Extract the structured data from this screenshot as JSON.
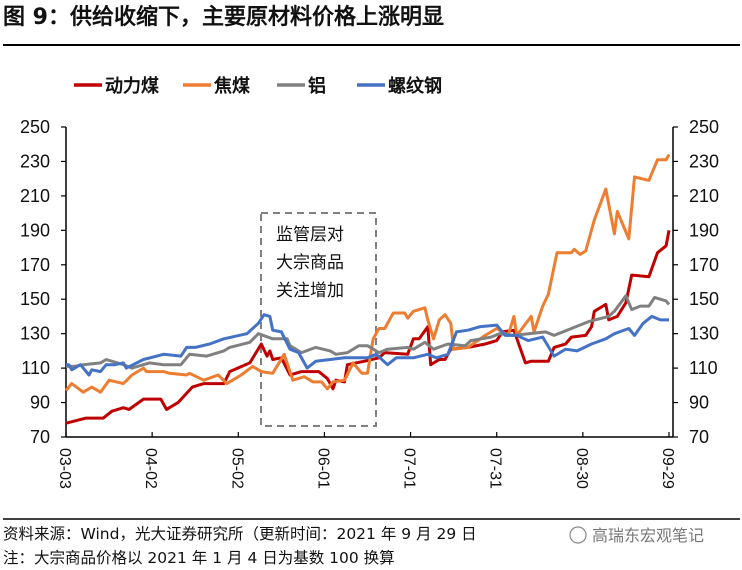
{
  "title": "图 9：供给收缩下，主要原材料价格上涨明显",
  "footer": {
    "source": "资料来源：Wind，光大证券研究所（更新时间：2021 年 9 月 29 日",
    "note": "注：大宗商品价格以 2021 年 1 月 4 日为基数 100 换算",
    "watermark": "高瑞东宏观笔记"
  },
  "chart_data": {
    "type": "line",
    "title": "",
    "xlabel": "",
    "ylabel": "",
    "ylim": [
      70,
      250
    ],
    "y_ticks": [
      "250",
      "230",
      "210",
      "190",
      "170",
      "150",
      "130",
      "110",
      "90",
      "70"
    ],
    "y2_ticks": [
      "250",
      "230",
      "210",
      "190",
      "170",
      "150",
      "130",
      "110",
      "90",
      "70"
    ],
    "x_ticks": [
      "03-03",
      "04-02",
      "05-02",
      "06-01",
      "07-01",
      "07-31",
      "08-30",
      "09-29"
    ],
    "x_range": [
      "03-03",
      "09-29"
    ],
    "grid": false,
    "legend_position": "top",
    "annotation": {
      "lines": [
        "监管层对",
        "大宗商品",
        "关注增加"
      ],
      "range": [
        "05-09",
        "06-17"
      ],
      "style": "dashed-box"
    },
    "series": [
      {
        "name": "动力煤",
        "color": "#C00000",
        "points": [
          [
            "03-03",
            78
          ],
          [
            "03-10",
            81
          ],
          [
            "03-16",
            81
          ],
          [
            "03-19",
            85
          ],
          [
            "03-23",
            87
          ],
          [
            "03-25",
            86
          ],
          [
            "03-30",
            92
          ],
          [
            "04-05",
            92
          ],
          [
            "04-07",
            86
          ],
          [
            "04-11",
            90
          ],
          [
            "04-16",
            99
          ],
          [
            "04-20",
            101
          ],
          [
            "04-27",
            101
          ],
          [
            "04-29",
            108
          ],
          [
            "05-06",
            113
          ],
          [
            "05-10",
            124
          ],
          [
            "05-12",
            117
          ],
          [
            "05-13",
            120
          ],
          [
            "05-14",
            115
          ],
          [
            "05-17",
            116
          ],
          [
            "05-20",
            106
          ],
          [
            "05-24",
            108
          ],
          [
            "05-30",
            108
          ],
          [
            "06-02",
            104
          ],
          [
            "06-04",
            98
          ],
          [
            "06-05",
            103
          ],
          [
            "06-08",
            102
          ],
          [
            "06-09",
            112
          ],
          [
            "06-15",
            114
          ],
          [
            "06-20",
            116
          ],
          [
            "06-22",
            119
          ],
          [
            "06-30",
            118
          ],
          [
            "07-02",
            127
          ],
          [
            "07-04",
            127
          ],
          [
            "07-07",
            134
          ],
          [
            "07-08",
            112
          ],
          [
            "07-11",
            115
          ],
          [
            "07-13",
            115
          ],
          [
            "07-15",
            121
          ],
          [
            "07-21",
            122
          ],
          [
            "07-27",
            124
          ],
          [
            "07-31",
            126
          ],
          [
            "08-02",
            131
          ],
          [
            "08-06",
            132
          ],
          [
            "08-10",
            113
          ],
          [
            "08-12",
            114
          ],
          [
            "08-18",
            114
          ],
          [
            "08-20",
            122
          ],
          [
            "08-24",
            124
          ],
          [
            "08-26",
            128
          ],
          [
            "08-31",
            129
          ],
          [
            "09-02",
            134
          ],
          [
            "09-03",
            143
          ],
          [
            "09-07",
            147
          ],
          [
            "09-08",
            138
          ],
          [
            "09-11",
            140
          ],
          [
            "09-14",
            148
          ],
          [
            "09-16",
            164
          ],
          [
            "09-22",
            163
          ],
          [
            "09-25",
            177
          ],
          [
            "09-28",
            181
          ],
          [
            "09-29",
            190
          ]
        ]
      },
      {
        "name": "焦煤",
        "color": "#ED7D31",
        "points": [
          [
            "03-03",
            97
          ],
          [
            "03-05",
            101
          ],
          [
            "03-09",
            96
          ],
          [
            "03-12",
            99
          ],
          [
            "03-15",
            96
          ],
          [
            "03-18",
            103
          ],
          [
            "03-23",
            101
          ],
          [
            "03-26",
            106
          ],
          [
            "03-30",
            110
          ],
          [
            "03-31",
            108
          ],
          [
            "04-06",
            108
          ],
          [
            "04-08",
            107
          ],
          [
            "04-14",
            106
          ],
          [
            "04-15",
            107
          ],
          [
            "04-20",
            103
          ],
          [
            "04-25",
            106
          ],
          [
            "04-28",
            101
          ],
          [
            "05-03",
            106
          ],
          [
            "05-07",
            111
          ],
          [
            "05-10",
            108
          ],
          [
            "05-14",
            107
          ],
          [
            "05-18",
            118
          ],
          [
            "05-21",
            103
          ],
          [
            "05-25",
            105
          ],
          [
            "05-28",
            102
          ],
          [
            "05-31",
            102
          ],
          [
            "06-02",
            98
          ],
          [
            "06-04",
            102
          ],
          [
            "06-08",
            103
          ],
          [
            "06-11",
            113
          ],
          [
            "06-14",
            107
          ],
          [
            "06-16",
            107
          ],
          [
            "06-18",
            127
          ],
          [
            "06-20",
            133
          ],
          [
            "06-22",
            133
          ],
          [
            "06-25",
            142
          ],
          [
            "06-29",
            142
          ],
          [
            "06-30",
            139
          ],
          [
            "07-02",
            143
          ],
          [
            "07-06",
            145
          ],
          [
            "07-07",
            138
          ],
          [
            "07-09",
            127
          ],
          [
            "07-11",
            138
          ],
          [
            "07-13",
            141
          ],
          [
            "07-15",
            136
          ],
          [
            "07-16",
            121
          ],
          [
            "07-21",
            122
          ],
          [
            "07-27",
            129
          ],
          [
            "07-31",
            133
          ],
          [
            "08-04",
            129
          ],
          [
            "08-06",
            140
          ],
          [
            "08-07",
            129
          ],
          [
            "08-12",
            140
          ],
          [
            "08-13",
            131
          ],
          [
            "08-16",
            146
          ],
          [
            "08-18",
            153
          ],
          [
            "08-21",
            177
          ],
          [
            "08-26",
            177
          ],
          [
            "08-27",
            179
          ],
          [
            "08-29",
            176
          ],
          [
            "08-31",
            178
          ],
          [
            "09-03",
            196
          ],
          [
            "09-07",
            214
          ],
          [
            "09-10",
            188
          ],
          [
            "09-11",
            201
          ],
          [
            "09-15",
            185
          ],
          [
            "09-17",
            221
          ],
          [
            "09-22",
            219
          ],
          [
            "09-25",
            231
          ],
          [
            "09-28",
            231
          ],
          [
            "09-29",
            234
          ]
        ]
      },
      {
        "name": "铝",
        "color": "#808080",
        "points": [
          [
            "03-03",
            111
          ],
          [
            "03-06",
            111
          ],
          [
            "03-09",
            112
          ],
          [
            "03-15",
            113
          ],
          [
            "03-17",
            115
          ],
          [
            "03-23",
            112
          ],
          [
            "03-26",
            110
          ],
          [
            "04-01",
            113
          ],
          [
            "04-06",
            112
          ],
          [
            "04-12",
            112
          ],
          [
            "04-15",
            118
          ],
          [
            "04-21",
            117
          ],
          [
            "04-27",
            120
          ],
          [
            "04-29",
            122
          ],
          [
            "05-06",
            125
          ],
          [
            "05-09",
            130
          ],
          [
            "05-14",
            127
          ],
          [
            "05-19",
            127
          ],
          [
            "05-20",
            123
          ],
          [
            "05-24",
            119
          ],
          [
            "05-29",
            122
          ],
          [
            "06-03",
            120
          ],
          [
            "06-05",
            118
          ],
          [
            "06-09",
            119
          ],
          [
            "06-13",
            123
          ],
          [
            "06-16",
            123
          ],
          [
            "06-20",
            119
          ],
          [
            "06-23",
            121
          ],
          [
            "06-30",
            122
          ],
          [
            "07-02",
            121
          ],
          [
            "07-06",
            125
          ],
          [
            "07-09",
            121
          ],
          [
            "07-14",
            124
          ],
          [
            "07-20",
            123
          ],
          [
            "07-22",
            126
          ],
          [
            "07-29",
            128
          ],
          [
            "08-01",
            130
          ],
          [
            "08-06",
            129
          ],
          [
            "08-17",
            131
          ],
          [
            "08-20",
            129
          ],
          [
            "08-26",
            133
          ],
          [
            "09-01",
            137
          ],
          [
            "09-08",
            140
          ],
          [
            "09-10",
            143
          ],
          [
            "09-14",
            152
          ],
          [
            "09-16",
            144
          ],
          [
            "09-19",
            146
          ],
          [
            "09-22",
            146
          ],
          [
            "09-24",
            151
          ],
          [
            "09-28",
            149
          ],
          [
            "09-29",
            147
          ]
        ]
      },
      {
        "name": "螺纹钢",
        "color": "#4472C4",
        "points": [
          [
            "03-03",
            112
          ],
          [
            "03-04",
            112
          ],
          [
            "03-05",
            109
          ],
          [
            "03-08",
            112
          ],
          [
            "03-11",
            106
          ],
          [
            "03-12",
            109
          ],
          [
            "03-15",
            108
          ],
          [
            "03-17",
            112
          ],
          [
            "03-20",
            112
          ],
          [
            "03-23",
            113
          ],
          [
            "03-24",
            110
          ],
          [
            "03-30",
            115
          ],
          [
            "04-06",
            118
          ],
          [
            "04-12",
            117
          ],
          [
            "04-14",
            122
          ],
          [
            "04-17",
            122
          ],
          [
            "04-22",
            124
          ],
          [
            "04-27",
            127
          ],
          [
            "05-05",
            130
          ],
          [
            "05-09",
            136
          ],
          [
            "05-11",
            141
          ],
          [
            "05-13",
            140
          ],
          [
            "05-14",
            132
          ],
          [
            "05-17",
            131
          ],
          [
            "05-20",
            121
          ],
          [
            "05-23",
            119
          ],
          [
            "05-26",
            110
          ],
          [
            "05-29",
            114
          ],
          [
            "06-03",
            115
          ],
          [
            "06-08",
            116
          ],
          [
            "06-16",
            116
          ],
          [
            "06-19",
            118
          ],
          [
            "06-23",
            112
          ],
          [
            "06-26",
            116
          ],
          [
            "07-02",
            116
          ],
          [
            "07-07",
            118
          ],
          [
            "07-10",
            116
          ],
          [
            "07-14",
            118
          ],
          [
            "07-17",
            131
          ],
          [
            "07-21",
            132
          ],
          [
            "07-25",
            134
          ],
          [
            "07-31",
            135
          ],
          [
            "08-03",
            129
          ],
          [
            "08-07",
            129
          ],
          [
            "08-11",
            126
          ],
          [
            "08-16",
            128
          ],
          [
            "08-20",
            117
          ],
          [
            "08-24",
            121
          ],
          [
            "08-28",
            120
          ],
          [
            "09-02",
            124
          ],
          [
            "09-07",
            127
          ],
          [
            "09-10",
            130
          ],
          [
            "09-15",
            133
          ],
          [
            "09-17",
            129
          ],
          [
            "09-20",
            136
          ],
          [
            "09-23",
            140
          ],
          [
            "09-26",
            138
          ],
          [
            "09-29",
            138
          ]
        ]
      }
    ]
  }
}
